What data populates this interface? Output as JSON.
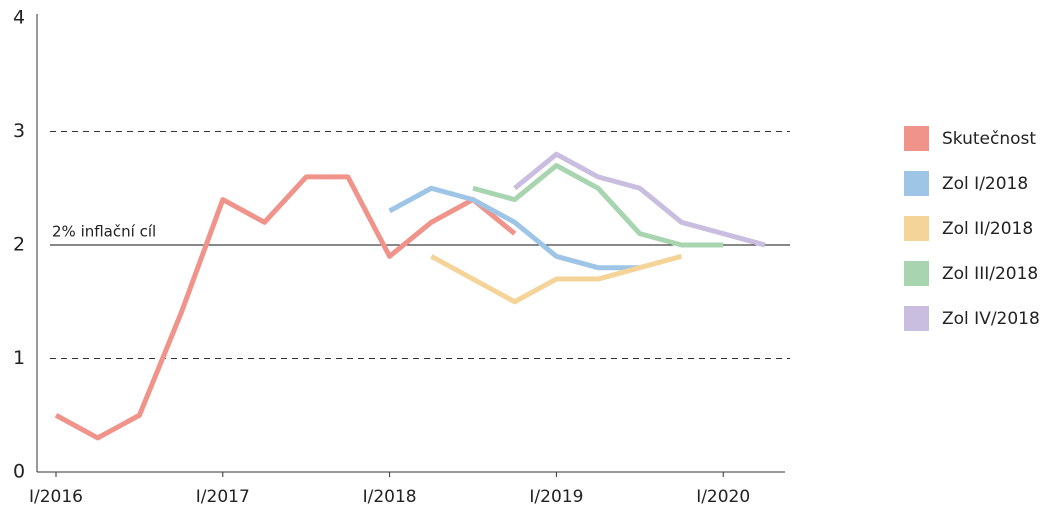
{
  "chart_data": {
    "type": "line",
    "categories": [
      "I/2016",
      null,
      null,
      null,
      "I/2017",
      null,
      null,
      null,
      "I/2018",
      null,
      null,
      null,
      "I/2019",
      null,
      null,
      null,
      "I/2020",
      null
    ],
    "series": [
      {
        "name": "Skutečnost",
        "color": "#f0938a",
        "values": [
          0.5,
          0.3,
          0.5,
          1.4,
          2.4,
          2.2,
          2.6,
          2.6,
          1.9,
          2.2,
          2.4,
          2.1,
          null,
          null,
          null,
          null,
          null,
          null
        ]
      },
      {
        "name": "Zol I/2018",
        "color": "#9fc5e6",
        "values": [
          null,
          null,
          null,
          null,
          null,
          null,
          null,
          null,
          2.3,
          2.5,
          2.4,
          2.2,
          1.9,
          1.8,
          1.8,
          null,
          null,
          null
        ]
      },
      {
        "name": "Zol II/2018",
        "color": "#f5d49a",
        "values": [
          null,
          null,
          null,
          null,
          null,
          null,
          null,
          null,
          null,
          1.9,
          1.7,
          1.5,
          1.7,
          1.7,
          1.8,
          1.9,
          null,
          null
        ]
      },
      {
        "name": "Zol III/2018",
        "color": "#a8d5b0",
        "values": [
          null,
          null,
          null,
          null,
          null,
          null,
          null,
          null,
          null,
          null,
          2.5,
          2.4,
          2.7,
          2.5,
          2.1,
          2.0,
          2.0,
          null
        ]
      },
      {
        "name": "Zol IV/2018",
        "color": "#c9bde0",
        "values": [
          null,
          null,
          null,
          null,
          null,
          null,
          null,
          null,
          null,
          null,
          null,
          2.5,
          2.8,
          2.6,
          2.5,
          2.2,
          2.1,
          2.0
        ]
      }
    ],
    "ylim": [
      0,
      4
    ],
    "yticks": [
      0,
      1,
      2,
      3,
      4
    ],
    "reference_lines": [
      {
        "value": 1,
        "style": "dashed"
      },
      {
        "value": 2,
        "style": "solid",
        "label": "2% inflační cíl"
      },
      {
        "value": 3,
        "style": "dashed"
      }
    ],
    "legend": "right"
  }
}
